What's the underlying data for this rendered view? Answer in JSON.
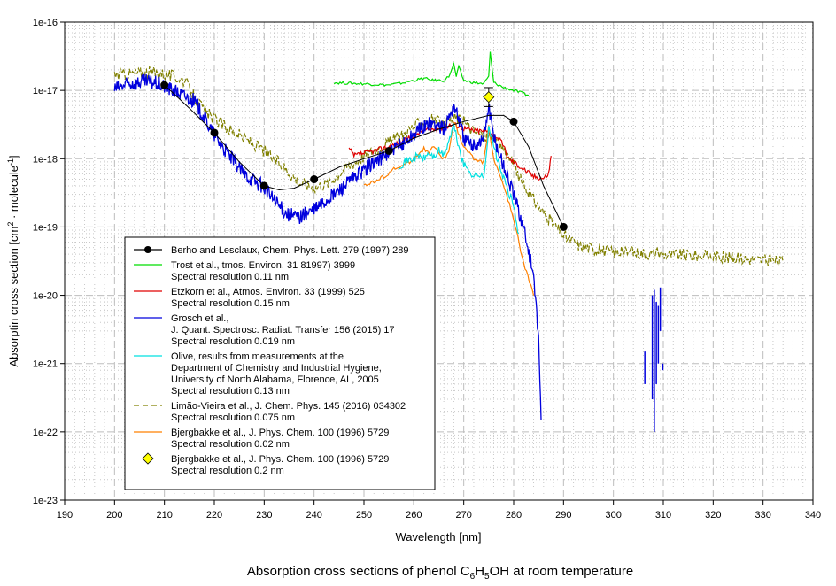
{
  "chart_data": {
    "type": "line",
    "title": "Absorption cross sections of phenol C6H5OH at room temperature",
    "title_parts": {
      "prefix": "Absorption cross sections of phenol C",
      "sub1": "6",
      "mid1": "H",
      "sub2": "5",
      "suffix": "OH at room temperature"
    },
    "xlabel": "Wavelength [nm]",
    "ylabel": "Absorptin cross section [cm2 · molecule-1]",
    "ylabel_parts": {
      "prefix": "Absorptin cross section [cm",
      "sup1": "2",
      "mid": " · molecule",
      "sup2": "-1",
      "suffix": "]"
    },
    "xlim": [
      190,
      340
    ],
    "ylim": [
      1e-23,
      1e-16
    ],
    "yscale": "log",
    "grid": true,
    "legend_position": "lower-left",
    "x_ticks": [
      "190",
      "200",
      "210",
      "220",
      "230",
      "240",
      "250",
      "260",
      "270",
      "280",
      "290",
      "300",
      "310",
      "320",
      "330",
      "340"
    ],
    "y_ticks": [
      "1e-16",
      "1e-17",
      "1e-18",
      "1e-19",
      "1e-20",
      "1e-21",
      "1e-22",
      "1e-23"
    ],
    "series": [
      {
        "name": "Berho and Lesclaux, Chem. Phys. Lett. 279 (1997) 289",
        "legend_lines": [
          "Berho and Lesclaux, Chem. Phys. Lett. 279 (1997) 289"
        ],
        "color": "#000000",
        "style": "line-marker",
        "marker": "circle",
        "x": [
          210,
          220,
          230,
          240,
          255,
          280,
          290
        ],
        "y": [
          1.2e-17,
          2.4e-18,
          4e-19,
          5e-19,
          1.3e-18,
          3.5e-18,
          1e-19
        ],
        "curve_x": [
          210,
          215,
          220,
          225,
          230,
          233,
          236,
          240,
          245,
          250,
          255,
          260,
          265,
          270,
          275,
          278,
          280,
          283,
          286,
          290
        ],
        "curve_y": [
          1.2e-17,
          5.5e-18,
          2.4e-18,
          9e-19,
          4e-19,
          3.5e-19,
          3.7e-19,
          5e-19,
          7.5e-19,
          1e-18,
          1.3e-18,
          2e-18,
          2.7e-18,
          3.5e-18,
          4.3e-18,
          4.3e-18,
          3.5e-18,
          1.5e-18,
          4e-19,
          1e-19
        ]
      },
      {
        "name": "Trost et al., tmos. Environ. 31 81997) 3999",
        "legend_lines": [
          "Trost et al., tmos. Environ. 31 81997) 3999",
          "Spectral resolution 0.11 nm"
        ],
        "color": "#00dd00",
        "style": "line",
        "x": [
          244,
          250,
          255,
          258,
          260,
          262,
          264,
          266,
          267,
          268,
          268.5,
          269,
          270,
          272,
          274,
          275,
          275.3,
          276,
          278,
          280,
          283
        ],
        "y": [
          1.3e-17,
          1.25e-17,
          1.2e-17,
          1.3e-17,
          1.4e-17,
          1.5e-17,
          1.4e-17,
          1.4e-17,
          1.6e-17,
          2.4e-17,
          1.6e-17,
          2.2e-17,
          1.4e-17,
          1.3e-17,
          1.25e-17,
          1.6e-17,
          3.6e-17,
          1.3e-17,
          1.1e-17,
          1e-17,
          8.5e-18
        ]
      },
      {
        "name": "Etzkorn et al., Atmos. Environ. 33 (1999) 525",
        "legend_lines": [
          "Etzkorn et al., Atmos. Environ. 33 (1999) 525",
          "Spectral resolution 0.15 nm"
        ],
        "color": "#e00000",
        "style": "line",
        "x": [
          247,
          248,
          250,
          252,
          255,
          258,
          260,
          262,
          265,
          268,
          270,
          272,
          275,
          277,
          278,
          279,
          280,
          282,
          284,
          286,
          287,
          287.5
        ],
        "y": [
          1.4e-18,
          1.1e-18,
          1.2e-18,
          1.3e-18,
          1.5e-18,
          1.8e-18,
          2.2e-18,
          2.6e-18,
          2.8e-18,
          3.2e-18,
          2.8e-18,
          2.6e-18,
          2.5e-18,
          2e-18,
          1.5e-18,
          1e-18,
          9e-19,
          7e-19,
          5.5e-19,
          5.2e-19,
          6e-19,
          1.1e-18
        ]
      },
      {
        "name": "Grosch et al., J. Quant. Spectrosc. Radiat. Transfer 156 (2015) 17",
        "legend_lines": [
          "Grosch et al.,",
          "J. Quant. Spectrosc. Radiat. Transfer 156 (2015) 17",
          "Spectral resolution 0.019 nm"
        ],
        "color": "#0000dd",
        "style": "line",
        "x": [
          200,
          203,
          206,
          208,
          210,
          213,
          216,
          218,
          220,
          223,
          226,
          230,
          233,
          235,
          237,
          240,
          243,
          246,
          249,
          252,
          255,
          258,
          260,
          262,
          264,
          266,
          268,
          269,
          270,
          272,
          274,
          275,
          276,
          278,
          280,
          282,
          284,
          285,
          285.5
        ],
        "y": [
          1.05e-17,
          1.25e-17,
          1.35e-17,
          1.3e-17,
          1.15e-17,
          9e-18,
          7e-18,
          4e-18,
          2.2e-18,
          1.1e-18,
          6e-19,
          3.8e-19,
          2e-19,
          1.5e-19,
          1.4e-19,
          1.8e-19,
          2.6e-19,
          4e-19,
          6e-19,
          9e-19,
          1.2e-18,
          1.7e-18,
          2.3e-18,
          3e-18,
          3.3e-18,
          2.7e-18,
          6e-18,
          4e-18,
          2e-18,
          1.5e-18,
          2e-18,
          6e-18,
          2e-18,
          8e-19,
          3e-19,
          1e-19,
          2e-20,
          2e-21,
          1.5e-22
        ]
      },
      {
        "name": "Olive, results from measurements at the Department of Chemistry and Industrial Hygiene, University of North Alabama, Florence, AL, 2005",
        "legend_lines": [
          "Olive, results from measurements at the",
          "Department of Chemistry and Industrial Hygiene,",
          "University of North Alabama, Florence, AL, 2005",
          "Spectral resolution 0.13 nm"
        ],
        "color": "#00e0e0",
        "style": "line",
        "x": [
          257,
          259,
          261,
          262,
          263,
          264,
          265,
          266,
          268,
          269,
          270,
          271,
          272,
          273,
          274,
          275,
          276,
          278,
          280,
          281
        ],
        "y": [
          8e-19,
          9.5e-19,
          1.1e-18,
          1e-18,
          1.2e-18,
          1.05e-18,
          1.3e-18,
          1.1e-18,
          3e-18,
          1.5e-18,
          8e-19,
          7e-19,
          5.5e-19,
          6e-19,
          5e-19,
          3e-18,
          1.5e-18,
          5e-19,
          2e-19,
          8e-20
        ]
      },
      {
        "name": "Limão-Vieira et al., J. Chem. Phys. 145 (2016) 034302",
        "legend_lines": [
          "Limão-Vieira et al., J. Chem. Phys. 145 (2016) 034302",
          "Spectral resolution 0.075 nm"
        ],
        "color": "#808000",
        "style": "dashed",
        "x": [
          200,
          203,
          206,
          209,
          212,
          214,
          216,
          218,
          220,
          223,
          226,
          230,
          234,
          237,
          240,
          243,
          246,
          250,
          254,
          258,
          260,
          262,
          264,
          266,
          268,
          270,
          272,
          274,
          276,
          278,
          280,
          282,
          284,
          286,
          288,
          290,
          293,
          296,
          300,
          305,
          310,
          315,
          320,
          325,
          330,
          334
        ],
        "y": [
          1.7e-17,
          1.75e-17,
          1.85e-17,
          1.8e-17,
          1.6e-17,
          1.4e-17,
          8e-18,
          5e-18,
          3.8e-18,
          2.7e-18,
          2e-18,
          1.3e-18,
          7.5e-19,
          4.5e-19,
          3.8e-19,
          4.5e-19,
          7e-19,
          1.1e-18,
          1.6e-18,
          2.3e-18,
          3e-18,
          3.6e-18,
          3.8e-18,
          3e-18,
          4e-18,
          3.5e-18,
          2.5e-18,
          2.2e-18,
          2e-18,
          1.4e-18,
          8e-19,
          4e-19,
          2.5e-19,
          1.6e-19,
          1.1e-19,
          7.5e-20,
          5.5e-20,
          4.8e-20,
          4.3e-20,
          4.2e-20,
          4e-20,
          3.9e-20,
          3.7e-20,
          3.5e-20,
          3.3e-20,
          3.1e-20
        ]
      },
      {
        "name": "Bjergbakke et al., J. Phys. Chem. 100 (1996) 5729 (0.02 nm)",
        "legend_lines": [
          "Bjergbakke et al., J. Phys. Chem. 100 (1996) 5729",
          "Spectral resolution 0.02 nm"
        ],
        "color": "#ff8000",
        "style": "line",
        "x": [
          250,
          252,
          254,
          256,
          258,
          260,
          262,
          263,
          264,
          265,
          266,
          267,
          268,
          270,
          272,
          274,
          275,
          276,
          278,
          280,
          282,
          284
        ],
        "y": [
          4.2e-19,
          4.5e-19,
          5.5e-19,
          7e-19,
          8e-19,
          1e-18,
          1.4e-18,
          1.2e-18,
          1.5e-18,
          1.2e-18,
          1e-18,
          1.2e-18,
          3.5e-18,
          1.5e-18,
          1e-18,
          9e-19,
          3e-18,
          1e-18,
          4e-19,
          1.3e-19,
          3e-20,
          1e-20
        ]
      },
      {
        "name": "Bjergbakke et al., J. Phys. Chem. 100 (1996) 5729 (0.2 nm)",
        "legend_lines": [
          "Bjergbakke et al., J. Phys. Chem. 100 (1996) 5729",
          "Spectral resolution 0.2 nm"
        ],
        "color": "#ffff00",
        "style": "marker",
        "marker": "diamond",
        "x": [
          275
        ],
        "y": [
          8e-18
        ],
        "error_y": [
          [
            5.8e-18,
            1.1e-17
          ]
        ]
      }
    ],
    "grosch_extra_segments": [
      {
        "x": 306.3,
        "y_low": 5e-22,
        "y_high": 1.5e-21
      },
      {
        "x": 307.8,
        "y_low": 3e-22,
        "y_high": 1e-20
      },
      {
        "x": 308.2,
        "y_low": 1e-22,
        "y_high": 1.2e-20
      },
      {
        "x": 308.6,
        "y_low": 5e-22,
        "y_high": 8e-21
      },
      {
        "x": 309.0,
        "y_low": 1e-21,
        "y_high": 7e-21
      },
      {
        "x": 309.4,
        "y_low": 3e-21,
        "y_high": 1.3e-20
      },
      {
        "x": 309.9,
        "y_low": 8e-22,
        "y_high": 1e-21
      }
    ]
  }
}
